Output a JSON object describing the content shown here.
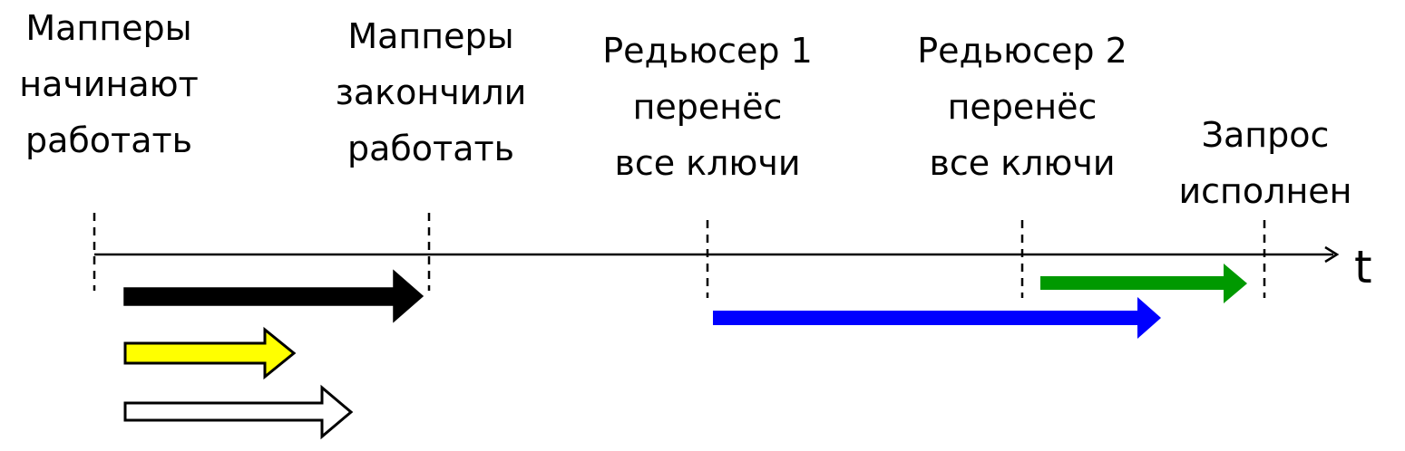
{
  "labels": {
    "mappers_start": [
      "Мапперы",
      "начинают",
      "работать"
    ],
    "mappers_done": [
      "Мапперы",
      "закончили",
      "работать"
    ],
    "reducer1_done": [
      "Редьюсер 1",
      "перенёс",
      "все ключи"
    ],
    "reducer2_done": [
      "Редьюсер 2",
      "перенёс",
      "все ключи"
    ],
    "query_done": [
      "Запрос",
      "исполнен"
    ]
  },
  "axis_label": "t",
  "colors": {
    "axis": "#000000",
    "arrow_mapper_main": "#000000",
    "arrow_mapper_yellow": "#ffff00",
    "arrow_mapper_white": "#ffffff",
    "arrow_reducer1": "#0000ff",
    "arrow_reducer2": "#009900"
  }
}
